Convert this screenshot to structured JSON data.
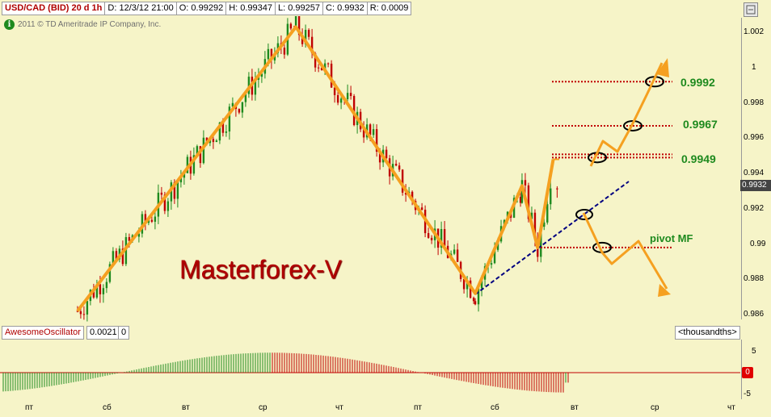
{
  "header": {
    "symbol": "USD/CAD (BID) 20 d 1h",
    "date": "D: 12/3/12 21:00",
    "open": "O: 0.99292",
    "high": "H: 0.99347",
    "low": "L: 0.99257",
    "close": "C: 0.9932",
    "range": "R: 0.0009"
  },
  "copyright": "2011 © TD Ameritrade IP Company, Inc.",
  "watermark": "Masterforex-V",
  "price_axis": {
    "ticks": [
      "1.002",
      "1",
      "0.998",
      "0.996",
      "0.994",
      "0.992",
      "0.99",
      "0.988",
      "0.986"
    ],
    "last_price": "0.9932"
  },
  "levels": [
    {
      "label": "0.9992",
      "value": 0.9992
    },
    {
      "label": "0.9967",
      "value": 0.9967
    },
    {
      "label": "0.9949",
      "value": 0.9949
    }
  ],
  "pivot_label": "pivot MF",
  "oscillator": {
    "name": "AwesomeOscillator",
    "value": "0.0021",
    "value2": "0",
    "units": "<thousandths>",
    "ticks": [
      "5",
      "0",
      "-5"
    ],
    "zero_badge": "0"
  },
  "x_axis": {
    "labels": [
      "пт",
      "сб",
      "вт",
      "ср",
      "чт",
      "пт",
      "сб",
      "вт",
      "ср",
      "чт"
    ]
  },
  "colors": {
    "background": "#f6f4c8",
    "up_candle": "#1e8a1e",
    "down_candle": "#c00000",
    "zigzag": "#f5a020",
    "level_line": "#c00000",
    "trendline": "#000080",
    "label_green": "#1e8a1e"
  },
  "chart_data": {
    "type": "line",
    "title": "USD/CAD (BID) 20 d 1h",
    "xlabel": "",
    "ylabel": "",
    "ylim": [
      0.9855,
      1.0032
    ],
    "x_categories": [
      "пт",
      "сб",
      "вт",
      "ср",
      "чт",
      "пт",
      "сб",
      "вт",
      "ср",
      "чт"
    ],
    "series": [
      {
        "values": [
          {
            "t": 0.6,
            "p": 0.9862
          },
          {
            "t": 3.4,
            "p": 1.0023
          },
          {
            "t": 5.7,
            "p": 0.9872
          },
          {
            "t": 6.3,
            "p": 0.9933
          },
          {
            "t": 6.5,
            "p": 0.9898
          },
          {
            "t": 6.7,
            "p": 0.9948
          }
        ]
      }
    ],
    "levels": [
      0.9992,
      0.9967,
      0.9949,
      0.9898
    ],
    "oscillator_ylim": [
      -5,
      5
    ]
  }
}
